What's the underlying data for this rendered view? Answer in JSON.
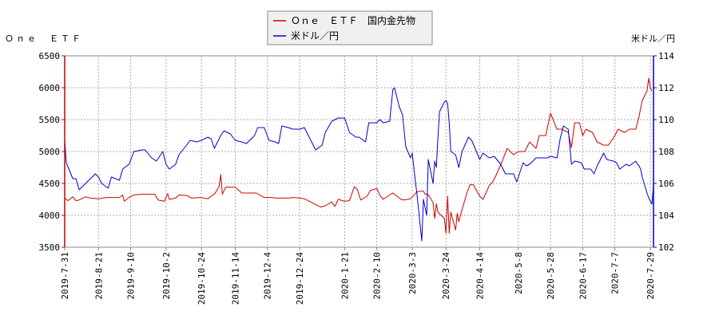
{
  "chart_data": {
    "type": "line",
    "left_axis_label": "Ｏｎｅ　ＥＴＦ",
    "right_axis_label": "米ドル／円",
    "legend": {
      "placement": "top-center",
      "entries": [
        {
          "name": "Ｏｎｅ　ＥＴＦ　国内金先物",
          "color": "#cc0000"
        },
        {
          "name": "米ドル／円",
          "color": "#0000cc"
        }
      ]
    },
    "left_axis": {
      "min": 3500,
      "max": 6500,
      "ticks": [
        "6500",
        "6000",
        "5500",
        "5000",
        "4500",
        "4000",
        "3500"
      ],
      "color": "#cc0000"
    },
    "right_axis": {
      "min": 102,
      "max": 114,
      "ticks": [
        "114",
        "112",
        "110",
        "108",
        "106",
        "104",
        "102"
      ],
      "color": "#0000cc"
    },
    "x_range": [
      "2019-07-31",
      "2020-07-31"
    ],
    "x_ticks": [
      "2019-7-31",
      "2019-8-21",
      "2019-9-10",
      "2019-10-2",
      "2019-10-24",
      "2019-11-14",
      "2019-12-4",
      "2019-12-24",
      "2020-1-21",
      "2020-2-10",
      "2020-3-3",
      "2020-3-24",
      "2020-4-14",
      "2020-5-8",
      "2020-5-28",
      "2020-6-17",
      "2020-7-7",
      "2020-7-29"
    ],
    "grid": true,
    "series": [
      {
        "name": "Ｏｎｅ　ＥＴＦ　国内金先物",
        "axis": "left",
        "color": "#cc0000",
        "points": [
          [
            "2019-07-31",
            4270
          ],
          [
            "2019-08-02",
            4230
          ],
          [
            "2019-08-05",
            4290
          ],
          [
            "2019-08-07",
            4230
          ],
          [
            "2019-08-09",
            4240
          ],
          [
            "2019-08-13",
            4290
          ],
          [
            "2019-08-16",
            4270
          ],
          [
            "2019-08-21",
            4260
          ],
          [
            "2019-08-26",
            4280
          ],
          [
            "2019-08-29",
            4280
          ],
          [
            "2019-09-03",
            4280
          ],
          [
            "2019-09-05",
            4320
          ],
          [
            "2019-09-06",
            4220
          ],
          [
            "2019-09-09",
            4280
          ],
          [
            "2019-09-12",
            4320
          ],
          [
            "2019-09-17",
            4330
          ],
          [
            "2019-09-20",
            4330
          ],
          [
            "2019-09-25",
            4330
          ],
          [
            "2019-09-27",
            4240
          ],
          [
            "2019-10-01",
            4220
          ],
          [
            "2019-10-03",
            4340
          ],
          [
            "2019-10-04",
            4250
          ],
          [
            "2019-10-08",
            4270
          ],
          [
            "2019-10-10",
            4320
          ],
          [
            "2019-10-15",
            4310
          ],
          [
            "2019-10-18",
            4270
          ],
          [
            "2019-10-23",
            4280
          ],
          [
            "2019-10-28",
            4260
          ],
          [
            "2019-10-30",
            4300
          ],
          [
            "2019-11-01",
            4330
          ],
          [
            "2019-11-04",
            4450
          ],
          [
            "2019-11-05",
            4640
          ],
          [
            "2019-11-06",
            4330
          ],
          [
            "2019-11-08",
            4440
          ],
          [
            "2019-11-12",
            4440
          ],
          [
            "2019-11-14",
            4440
          ],
          [
            "2019-11-18",
            4350
          ],
          [
            "2019-11-22",
            4350
          ],
          [
            "2019-11-27",
            4350
          ],
          [
            "2019-12-02",
            4280
          ],
          [
            "2019-12-06",
            4280
          ],
          [
            "2019-12-10",
            4270
          ],
          [
            "2019-12-13",
            4270
          ],
          [
            "2019-12-17",
            4270
          ],
          [
            "2019-12-20",
            4280
          ],
          [
            "2019-12-24",
            4270
          ],
          [
            "2019-12-27",
            4260
          ],
          [
            "2020-01-06",
            4130
          ],
          [
            "2020-01-09",
            4150
          ],
          [
            "2020-01-13",
            4210
          ],
          [
            "2020-01-15",
            4140
          ],
          [
            "2020-01-17",
            4250
          ],
          [
            "2020-01-21",
            4220
          ],
          [
            "2020-01-24",
            4230
          ],
          [
            "2020-01-27",
            4450
          ],
          [
            "2020-01-29",
            4400
          ],
          [
            "2020-01-31",
            4240
          ],
          [
            "2020-02-04",
            4300
          ],
          [
            "2020-02-06",
            4390
          ],
          [
            "2020-02-10",
            4420
          ],
          [
            "2020-02-12",
            4310
          ],
          [
            "2020-02-14",
            4250
          ],
          [
            "2020-02-18",
            4320
          ],
          [
            "2020-02-20",
            4350
          ],
          [
            "2020-02-25",
            4250
          ],
          [
            "2020-02-27",
            4240
          ],
          [
            "2020-03-02",
            4260
          ],
          [
            "2020-03-04",
            4310
          ],
          [
            "2020-03-06",
            4370
          ],
          [
            "2020-03-09",
            4380
          ],
          [
            "2020-03-10",
            4380
          ],
          [
            "2020-03-11",
            4330
          ],
          [
            "2020-03-12",
            4330
          ],
          [
            "2020-03-13",
            4320
          ],
          [
            "2020-03-16",
            4200
          ],
          [
            "2020-03-17",
            3950
          ],
          [
            "2020-03-18",
            4180
          ],
          [
            "2020-03-19",
            4050
          ],
          [
            "2020-03-23",
            3950
          ],
          [
            "2020-03-24",
            3720
          ],
          [
            "2020-03-25",
            4300
          ],
          [
            "2020-03-26",
            3720
          ],
          [
            "2020-03-27",
            4050
          ],
          [
            "2020-03-30",
            3770
          ],
          [
            "2020-03-31",
            4030
          ],
          [
            "2020-04-01",
            3900
          ],
          [
            "2020-04-02",
            4000
          ],
          [
            "2020-04-06",
            4350
          ],
          [
            "2020-04-08",
            4480
          ],
          [
            "2020-04-10",
            4480
          ],
          [
            "2020-04-14",
            4300
          ],
          [
            "2020-04-16",
            4250
          ],
          [
            "2020-04-20",
            4470
          ],
          [
            "2020-04-22",
            4520
          ],
          [
            "2020-04-24",
            4620
          ],
          [
            "2020-04-28",
            4850
          ],
          [
            "2020-04-30",
            4980
          ],
          [
            "2020-05-01",
            5050
          ],
          [
            "2020-05-05",
            4950
          ],
          [
            "2020-05-08",
            5000
          ],
          [
            "2020-05-12",
            5000
          ],
          [
            "2020-05-15",
            5150
          ],
          [
            "2020-05-19",
            5050
          ],
          [
            "2020-05-21",
            5250
          ],
          [
            "2020-05-25",
            5250
          ],
          [
            "2020-05-28",
            5600
          ],
          [
            "2020-06-01",
            5350
          ],
          [
            "2020-06-04",
            5350
          ],
          [
            "2020-06-08",
            5300
          ],
          [
            "2020-06-10",
            5060
          ],
          [
            "2020-06-12",
            5450
          ],
          [
            "2020-06-15",
            5450
          ],
          [
            "2020-06-17",
            5250
          ],
          [
            "2020-06-19",
            5350
          ],
          [
            "2020-06-23",
            5300
          ],
          [
            "2020-06-26",
            5150
          ],
          [
            "2020-06-30",
            5100
          ],
          [
            "2020-07-03",
            5100
          ],
          [
            "2020-07-07",
            5250
          ],
          [
            "2020-07-09",
            5350
          ],
          [
            "2020-07-13",
            5300
          ],
          [
            "2020-07-16",
            5350
          ],
          [
            "2020-07-20",
            5350
          ],
          [
            "2020-07-22",
            5550
          ],
          [
            "2020-07-24",
            5800
          ],
          [
            "2020-07-27",
            5950
          ],
          [
            "2020-07-28",
            6150
          ],
          [
            "2020-07-29",
            6000
          ],
          [
            "2020-07-30",
            5950
          ]
        ]
      },
      {
        "name": "米ドル／円",
        "axis": "right",
        "color": "#0000cc",
        "points": [
          [
            "2019-07-31",
            108.7
          ],
          [
            "2019-08-01",
            107.3
          ],
          [
            "2019-08-05",
            106.3
          ],
          [
            "2019-08-07",
            106.3
          ],
          [
            "2019-08-09",
            105.6
          ],
          [
            "2019-08-13",
            106.0
          ],
          [
            "2019-08-15",
            106.2
          ],
          [
            "2019-08-19",
            106.6
          ],
          [
            "2019-08-21",
            106.4
          ],
          [
            "2019-08-23",
            106.0
          ],
          [
            "2019-08-27",
            105.7
          ],
          [
            "2019-08-29",
            106.4
          ],
          [
            "2019-09-03",
            106.2
          ],
          [
            "2019-09-05",
            106.9
          ],
          [
            "2019-09-09",
            107.2
          ],
          [
            "2019-09-12",
            108.0
          ],
          [
            "2019-09-17",
            108.1
          ],
          [
            "2019-09-19",
            108.1
          ],
          [
            "2019-09-23",
            107.6
          ],
          [
            "2019-09-26",
            107.4
          ],
          [
            "2019-09-30",
            108.0
          ],
          [
            "2019-10-02",
            107.2
          ],
          [
            "2019-10-04",
            106.9
          ],
          [
            "2019-10-08",
            107.2
          ],
          [
            "2019-10-10",
            107.8
          ],
          [
            "2019-10-14",
            108.3
          ],
          [
            "2019-10-17",
            108.7
          ],
          [
            "2019-10-21",
            108.6
          ],
          [
            "2019-10-24",
            108.7
          ],
          [
            "2019-10-28",
            108.9
          ],
          [
            "2019-10-30",
            108.8
          ],
          [
            "2019-11-01",
            108.2
          ],
          [
            "2019-11-05",
            109.0
          ],
          [
            "2019-11-07",
            109.3
          ],
          [
            "2019-11-11",
            109.1
          ],
          [
            "2019-11-14",
            108.7
          ],
          [
            "2019-11-18",
            108.6
          ],
          [
            "2019-11-21",
            108.5
          ],
          [
            "2019-11-26",
            109.0
          ],
          [
            "2019-11-28",
            109.5
          ],
          [
            "2019-12-02",
            109.5
          ],
          [
            "2019-12-05",
            108.7
          ],
          [
            "2019-12-09",
            108.6
          ],
          [
            "2019-12-11",
            108.5
          ],
          [
            "2019-12-13",
            109.6
          ],
          [
            "2019-12-17",
            109.5
          ],
          [
            "2019-12-20",
            109.4
          ],
          [
            "2019-12-24",
            109.4
          ],
          [
            "2019-12-27",
            109.5
          ],
          [
            "2020-01-03",
            108.1
          ],
          [
            "2020-01-07",
            108.4
          ],
          [
            "2020-01-09",
            109.2
          ],
          [
            "2020-01-13",
            109.9
          ],
          [
            "2020-01-17",
            110.1
          ],
          [
            "2020-01-21",
            110.1
          ],
          [
            "2020-01-24",
            109.2
          ],
          [
            "2020-01-28",
            108.9
          ],
          [
            "2020-01-30",
            108.9
          ],
          [
            "2020-02-03",
            108.6
          ],
          [
            "2020-02-05",
            109.8
          ],
          [
            "2020-02-07",
            109.8
          ],
          [
            "2020-02-10",
            109.8
          ],
          [
            "2020-02-12",
            110.0
          ],
          [
            "2020-02-14",
            109.8
          ],
          [
            "2020-02-18",
            109.9
          ],
          [
            "2020-02-20",
            111.9
          ],
          [
            "2020-02-21",
            112.0
          ],
          [
            "2020-02-24",
            110.8
          ],
          [
            "2020-02-26",
            110.3
          ],
          [
            "2020-02-28",
            108.3
          ],
          [
            "2020-03-02",
            107.6
          ],
          [
            "2020-03-03",
            107.9
          ],
          [
            "2020-03-05",
            106.1
          ],
          [
            "2020-03-06",
            105.3
          ],
          [
            "2020-03-09",
            102.4
          ],
          [
            "2020-03-10",
            105.0
          ],
          [
            "2020-03-11",
            104.5
          ],
          [
            "2020-03-12",
            104.0
          ],
          [
            "2020-03-13",
            107.5
          ],
          [
            "2020-03-16",
            106.0
          ],
          [
            "2020-03-17",
            107.4
          ],
          [
            "2020-03-18",
            107.0
          ],
          [
            "2020-03-19",
            108.9
          ],
          [
            "2020-03-20",
            110.5
          ],
          [
            "2020-03-23",
            111.1
          ],
          [
            "2020-03-24",
            111.2
          ],
          [
            "2020-03-25",
            111.0
          ],
          [
            "2020-03-26",
            109.8
          ],
          [
            "2020-03-27",
            108.0
          ],
          [
            "2020-03-30",
            107.8
          ],
          [
            "2020-04-01",
            107.0
          ],
          [
            "2020-04-03",
            108.0
          ],
          [
            "2020-04-07",
            108.9
          ],
          [
            "2020-04-09",
            108.7
          ],
          [
            "2020-04-14",
            107.5
          ],
          [
            "2020-04-16",
            107.9
          ],
          [
            "2020-04-20",
            107.6
          ],
          [
            "2020-04-23",
            107.7
          ],
          [
            "2020-04-27",
            107.2
          ],
          [
            "2020-04-30",
            106.6
          ],
          [
            "2020-05-05",
            106.6
          ],
          [
            "2020-05-07",
            106.1
          ],
          [
            "2020-05-11",
            107.3
          ],
          [
            "2020-05-13",
            107.1
          ],
          [
            "2020-05-15",
            107.2
          ],
          [
            "2020-05-19",
            107.6
          ],
          [
            "2020-05-22",
            107.6
          ],
          [
            "2020-05-26",
            107.6
          ],
          [
            "2020-05-28",
            107.7
          ],
          [
            "2020-06-01",
            107.6
          ],
          [
            "2020-06-03",
            108.8
          ],
          [
            "2020-06-05",
            109.6
          ],
          [
            "2020-06-08",
            109.4
          ],
          [
            "2020-06-10",
            107.2
          ],
          [
            "2020-06-12",
            107.4
          ],
          [
            "2020-06-16",
            107.3
          ],
          [
            "2020-06-18",
            106.9
          ],
          [
            "2020-06-22",
            106.9
          ],
          [
            "2020-06-24",
            106.6
          ],
          [
            "2020-06-26",
            107.1
          ],
          [
            "2020-06-30",
            107.9
          ],
          [
            "2020-07-02",
            107.5
          ],
          [
            "2020-07-06",
            107.4
          ],
          [
            "2020-07-08",
            107.3
          ],
          [
            "2020-07-10",
            106.9
          ],
          [
            "2020-07-14",
            107.2
          ],
          [
            "2020-07-16",
            107.1
          ],
          [
            "2020-07-20",
            107.4
          ],
          [
            "2020-07-21",
            107.2
          ],
          [
            "2020-07-22",
            107.1
          ],
          [
            "2020-07-23",
            106.9
          ],
          [
            "2020-07-24",
            106.4
          ],
          [
            "2020-07-27",
            105.4
          ],
          [
            "2020-07-28",
            105.1
          ],
          [
            "2020-07-29",
            104.9
          ],
          [
            "2020-07-30",
            104.7
          ],
          [
            "2020-07-31",
            105.9
          ]
        ]
      }
    ]
  }
}
